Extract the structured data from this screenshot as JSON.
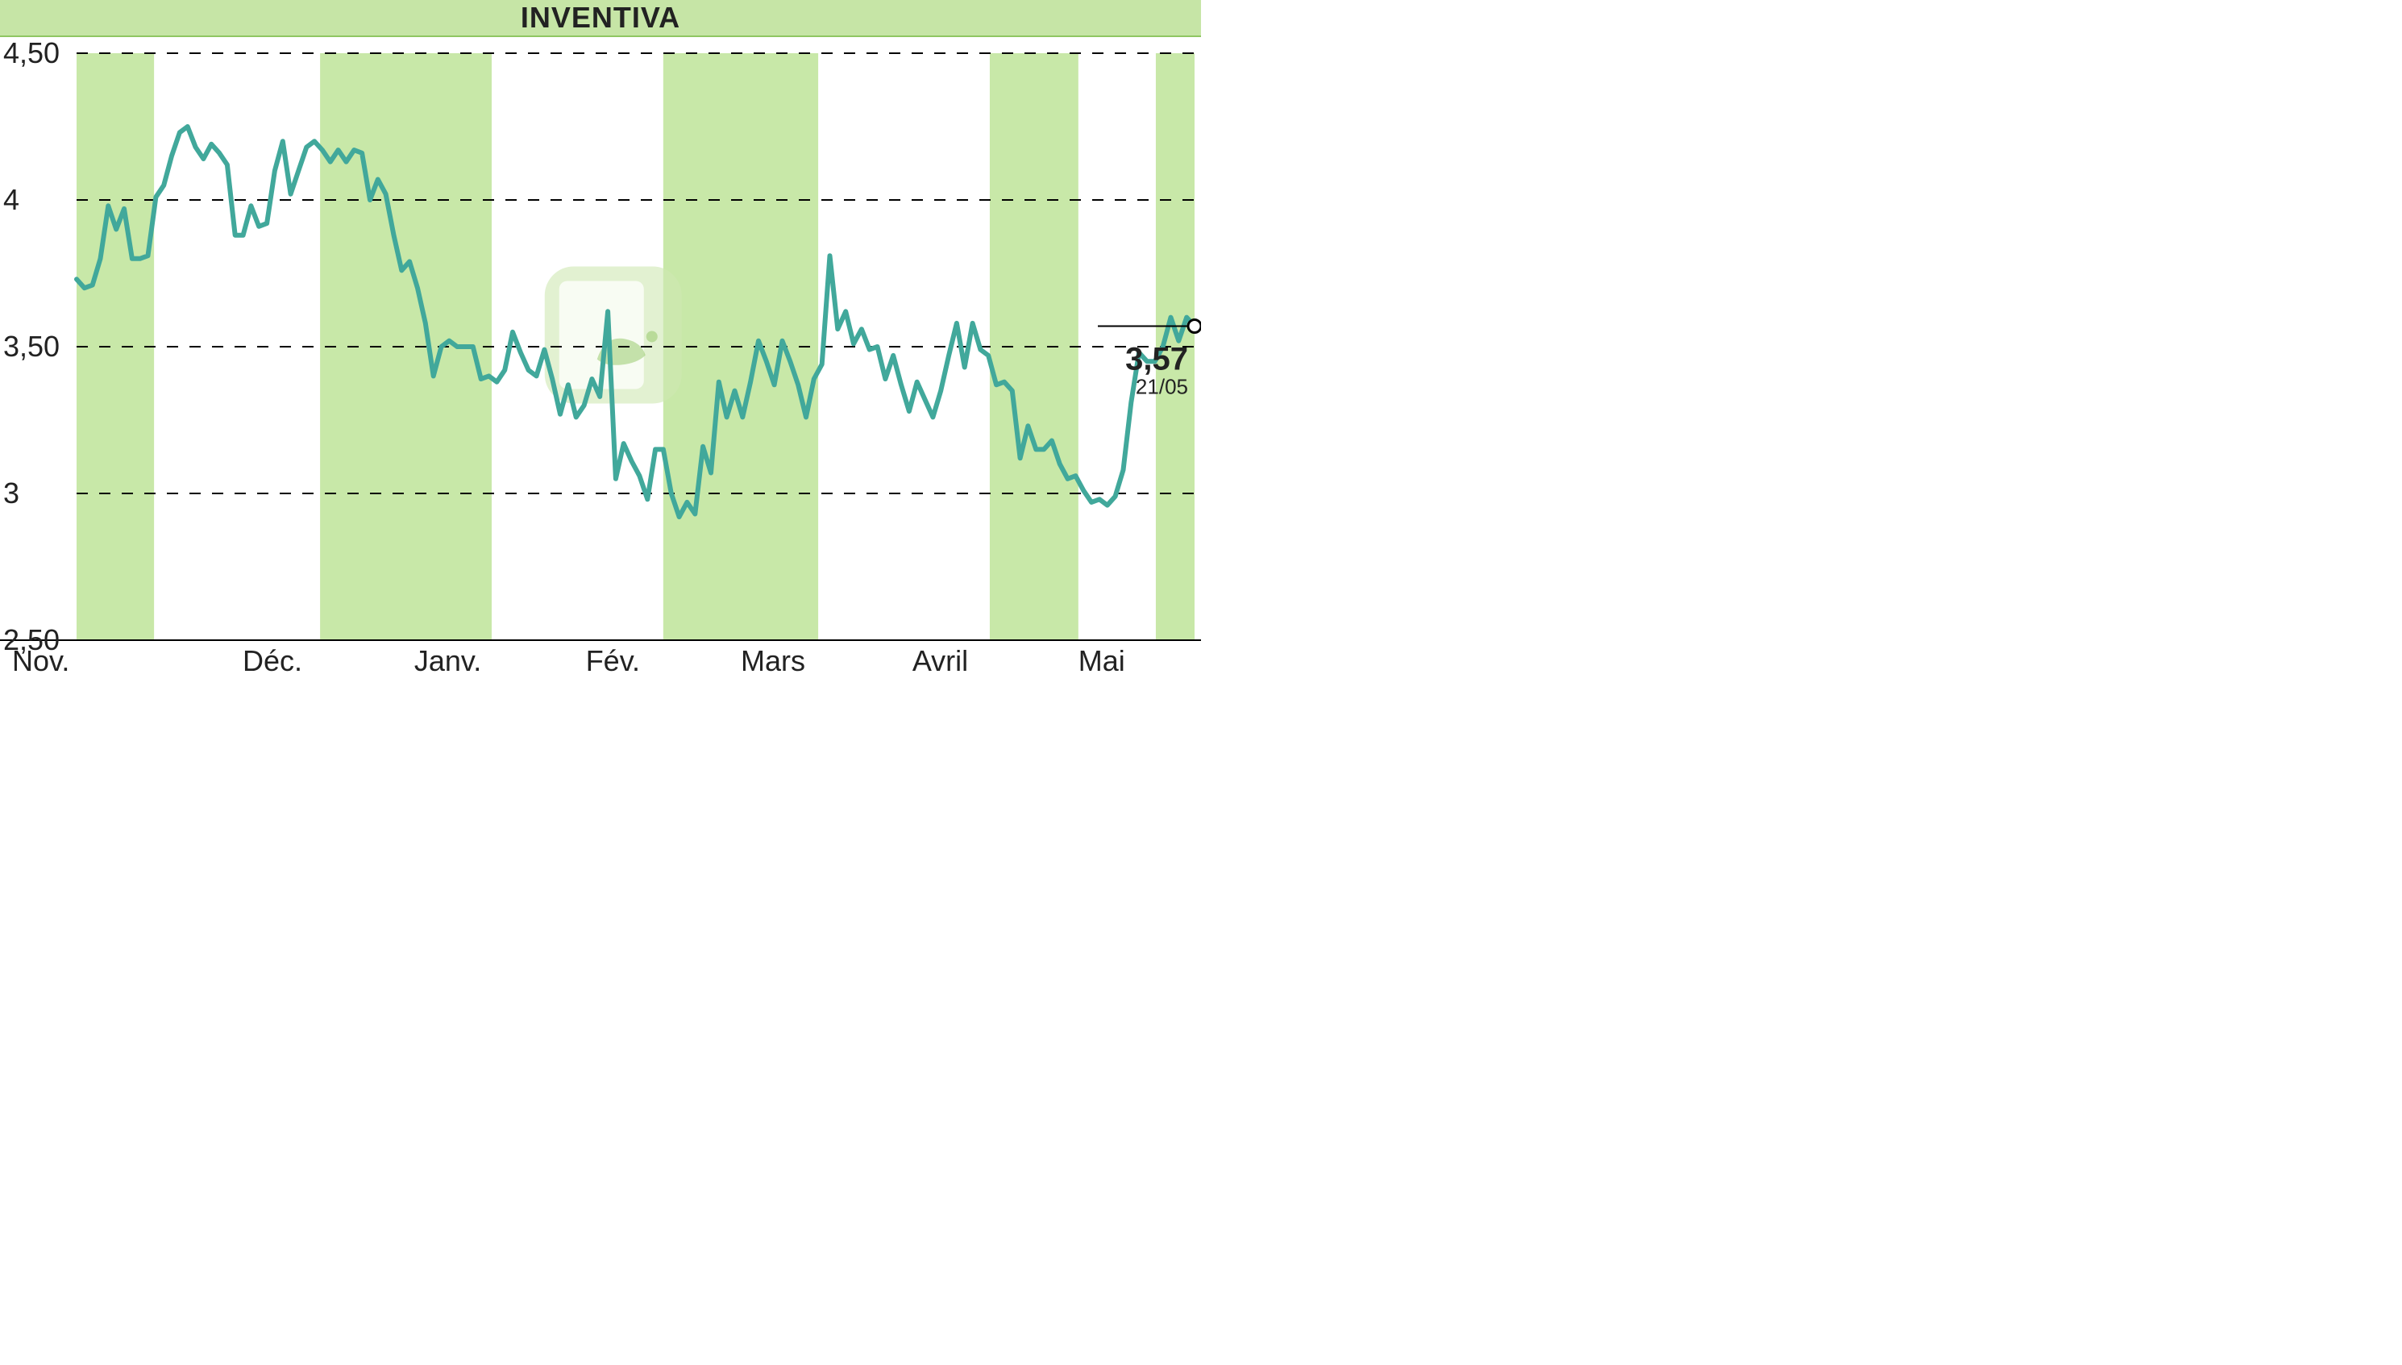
{
  "title": "INVENTIVA",
  "chart": {
    "type": "line",
    "background_color": "#ffffff",
    "title_bar_color": "#c6e5a6",
    "title_border_color": "#8fc662",
    "band_color": "#c8e8a8",
    "grid_color": "#000000",
    "line_color": "#41a89b",
    "line_width": 6,
    "ylim": [
      2.5,
      4.5
    ],
    "yticks": [
      2.5,
      3.0,
      3.5,
      4.0,
      4.5
    ],
    "ytick_labels": [
      "2,50",
      "3",
      "3,50",
      "4",
      "4,50"
    ],
    "x_months": [
      "Nov.",
      "Déc.",
      "Janv.",
      "Fév.",
      "Mars",
      "Avril",
      "Mai"
    ],
    "x_month_days": [
      30,
      31,
      31,
      28,
      31,
      30,
      31
    ],
    "bands": [
      {
        "start": "2023-11-01",
        "end": "2023-11-15"
      },
      {
        "start": "2023-12-15",
        "end": "2024-01-15"
      },
      {
        "start": "2024-02-15",
        "end": "2024-03-15"
      },
      {
        "start": "2024-04-15",
        "end": "2024-05-01"
      },
      {
        "start": "2024-05-15",
        "end": "2024-05-21"
      }
    ],
    "series": [
      3.73,
      3.7,
      3.71,
      3.8,
      3.98,
      3.9,
      3.97,
      3.8,
      3.8,
      3.81,
      4.01,
      4.05,
      4.15,
      4.23,
      4.25,
      4.18,
      4.14,
      4.19,
      4.16,
      4.12,
      3.88,
      3.88,
      3.98,
      3.91,
      3.92,
      4.1,
      4.2,
      4.02,
      4.1,
      4.18,
      4.2,
      4.17,
      4.13,
      4.17,
      4.13,
      4.17,
      4.16,
      4.0,
      4.07,
      4.02,
      3.88,
      3.76,
      3.79,
      3.7,
      3.58,
      3.4,
      3.5,
      3.52,
      3.5,
      3.5,
      3.5,
      3.39,
      3.4,
      3.38,
      3.42,
      3.55,
      3.48,
      3.42,
      3.4,
      3.49,
      3.39,
      3.27,
      3.37,
      3.26,
      3.3,
      3.39,
      3.33,
      3.62,
      3.05,
      3.17,
      3.11,
      3.06,
      2.98,
      3.15,
      3.15,
      3.0,
      2.92,
      2.97,
      2.93,
      3.16,
      3.07,
      3.38,
      3.26,
      3.35,
      3.26,
      3.38,
      3.52,
      3.45,
      3.37,
      3.52,
      3.45,
      3.37,
      3.26,
      3.39,
      3.44,
      3.81,
      3.56,
      3.62,
      3.51,
      3.56,
      3.49,
      3.5,
      3.39,
      3.47,
      3.37,
      3.28,
      3.38,
      3.32,
      3.26,
      3.35,
      3.47,
      3.58,
      3.43,
      3.58,
      3.49,
      3.47,
      3.37,
      3.38,
      3.35,
      3.12,
      3.23,
      3.15,
      3.15,
      3.18,
      3.1,
      3.05,
      3.06,
      3.01,
      2.97,
      2.98,
      2.96,
      2.99,
      3.08,
      3.31,
      3.48,
      3.45,
      3.45,
      3.5,
      3.6,
      3.52,
      3.6,
      3.57
    ],
    "last_value": "3,57",
    "last_date": "21/05",
    "title_fontsize": 36,
    "tick_fontsize": 36,
    "price_label_fontsize": 40,
    "date_label_fontsize": 26
  }
}
